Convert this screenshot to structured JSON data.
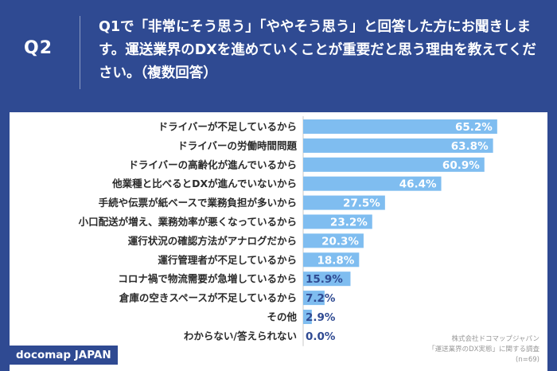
{
  "header": {
    "qnum": "Q2",
    "question": "Q1で「非常にそう思う」「ややそう思う」と回答した方にお聞きします。運送業界のDXを進めていくことが重要だと思う理由を教えてください。（複数回答）"
  },
  "brand": "docomap JAPAN",
  "source": {
    "line1": "株式会社ドコマップジャパン",
    "line2": "「運送業界のDX実態」に関する調査",
    "line3": "(n=69)"
  },
  "colors": {
    "bar": "#7fbdf0",
    "label_text": "#2b2b2b",
    "value_text": "#ffffff",
    "value_text_outside": "#2f4a92",
    "accent": "#2f4a92"
  },
  "chart_data": {
    "type": "bar",
    "orientation": "horizontal",
    "categories": [
      "ドライバーが不足しているから",
      "ドライバーの労働時間問題",
      "ドライバーの高齢化が進んでいるから",
      "他業種と比べるとDXが進んでいないから",
      "手続や伝票が紙ベースで業務負担が多いから",
      "小口配送が増え、業務効率が悪くなっているから",
      "運行状況の確認方法がアナログだから",
      "運行管理者が不足しているから",
      "コロナ禍で物流需要が急増しているから",
      "倉庫の空きスペースが不足しているから",
      "その他",
      "わからない/答えられない"
    ],
    "values": [
      65.2,
      63.8,
      60.9,
      46.4,
      27.5,
      23.2,
      20.3,
      18.8,
      15.9,
      7.2,
      2.9,
      0.0
    ],
    "value_labels": [
      "65.2%",
      "63.8%",
      "60.9%",
      "46.4%",
      "27.5%",
      "23.2%",
      "20.3%",
      "18.8%",
      "15.9%",
      "7.2%",
      "2.9%",
      "0.0%"
    ],
    "unit": "%",
    "xlim": [
      0,
      100
    ],
    "grid": false,
    "legend": "none"
  }
}
